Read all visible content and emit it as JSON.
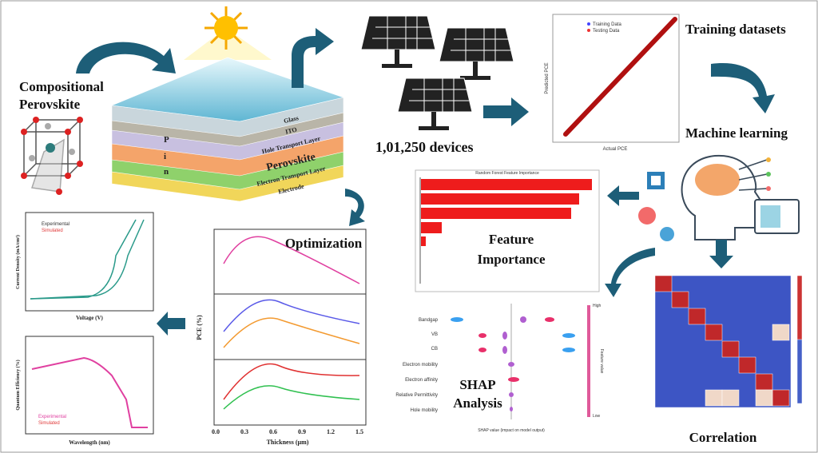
{
  "perovskite_block": {
    "title": [
      "Compositional",
      "Perovskite"
    ],
    "layers": [
      "Glass",
      "ITO",
      "Hole Transport Layer",
      "Perovskite",
      "Electron Transport Layer",
      "Electrode"
    ],
    "pin": [
      "P",
      "i",
      "n"
    ]
  },
  "devices": {
    "label": "1,01,250 devices"
  },
  "training": {
    "title": "Training datasets",
    "legend": [
      "Training Data",
      "Testing Data"
    ],
    "x_label": "Actual PCE",
    "y_label": "Predicted PCE"
  },
  "ml": {
    "title": "Machine learning"
  },
  "feature_importance": {
    "title": [
      "Feature",
      "Importance"
    ],
    "chart_title": "Random Forest Feature Importance"
  },
  "shap": {
    "title": [
      "SHAP",
      "Analysis"
    ],
    "features": [
      "Bandgap",
      "VB",
      "CB",
      "Electron mobility",
      "Electron affinity",
      "Relative Permittivity",
      "Hole mobility"
    ],
    "x_label": "SHAP value (impact on model output)",
    "color_label": "Feature value",
    "high": "High",
    "low": "Low"
  },
  "correlation": {
    "title": "Correlation"
  },
  "optimization": {
    "title": "Optimization",
    "x_label": "Thickness (µm)",
    "y_label": "PCE (%)",
    "xticks": [
      "0.0",
      "0.3",
      "0.6",
      "0.9",
      "1.2",
      "1.5"
    ]
  },
  "jv": {
    "x_label": "Voltage (V)",
    "y_label": "Current Density (mA/cm²)",
    "legend": [
      "Experimental",
      "Simulated"
    ]
  },
  "eqe": {
    "x_label": "Wavelength (nm)",
    "y_label": "Quantum Efficiency (%)",
    "legend": [
      "Experimental",
      "Simulated"
    ]
  }
}
